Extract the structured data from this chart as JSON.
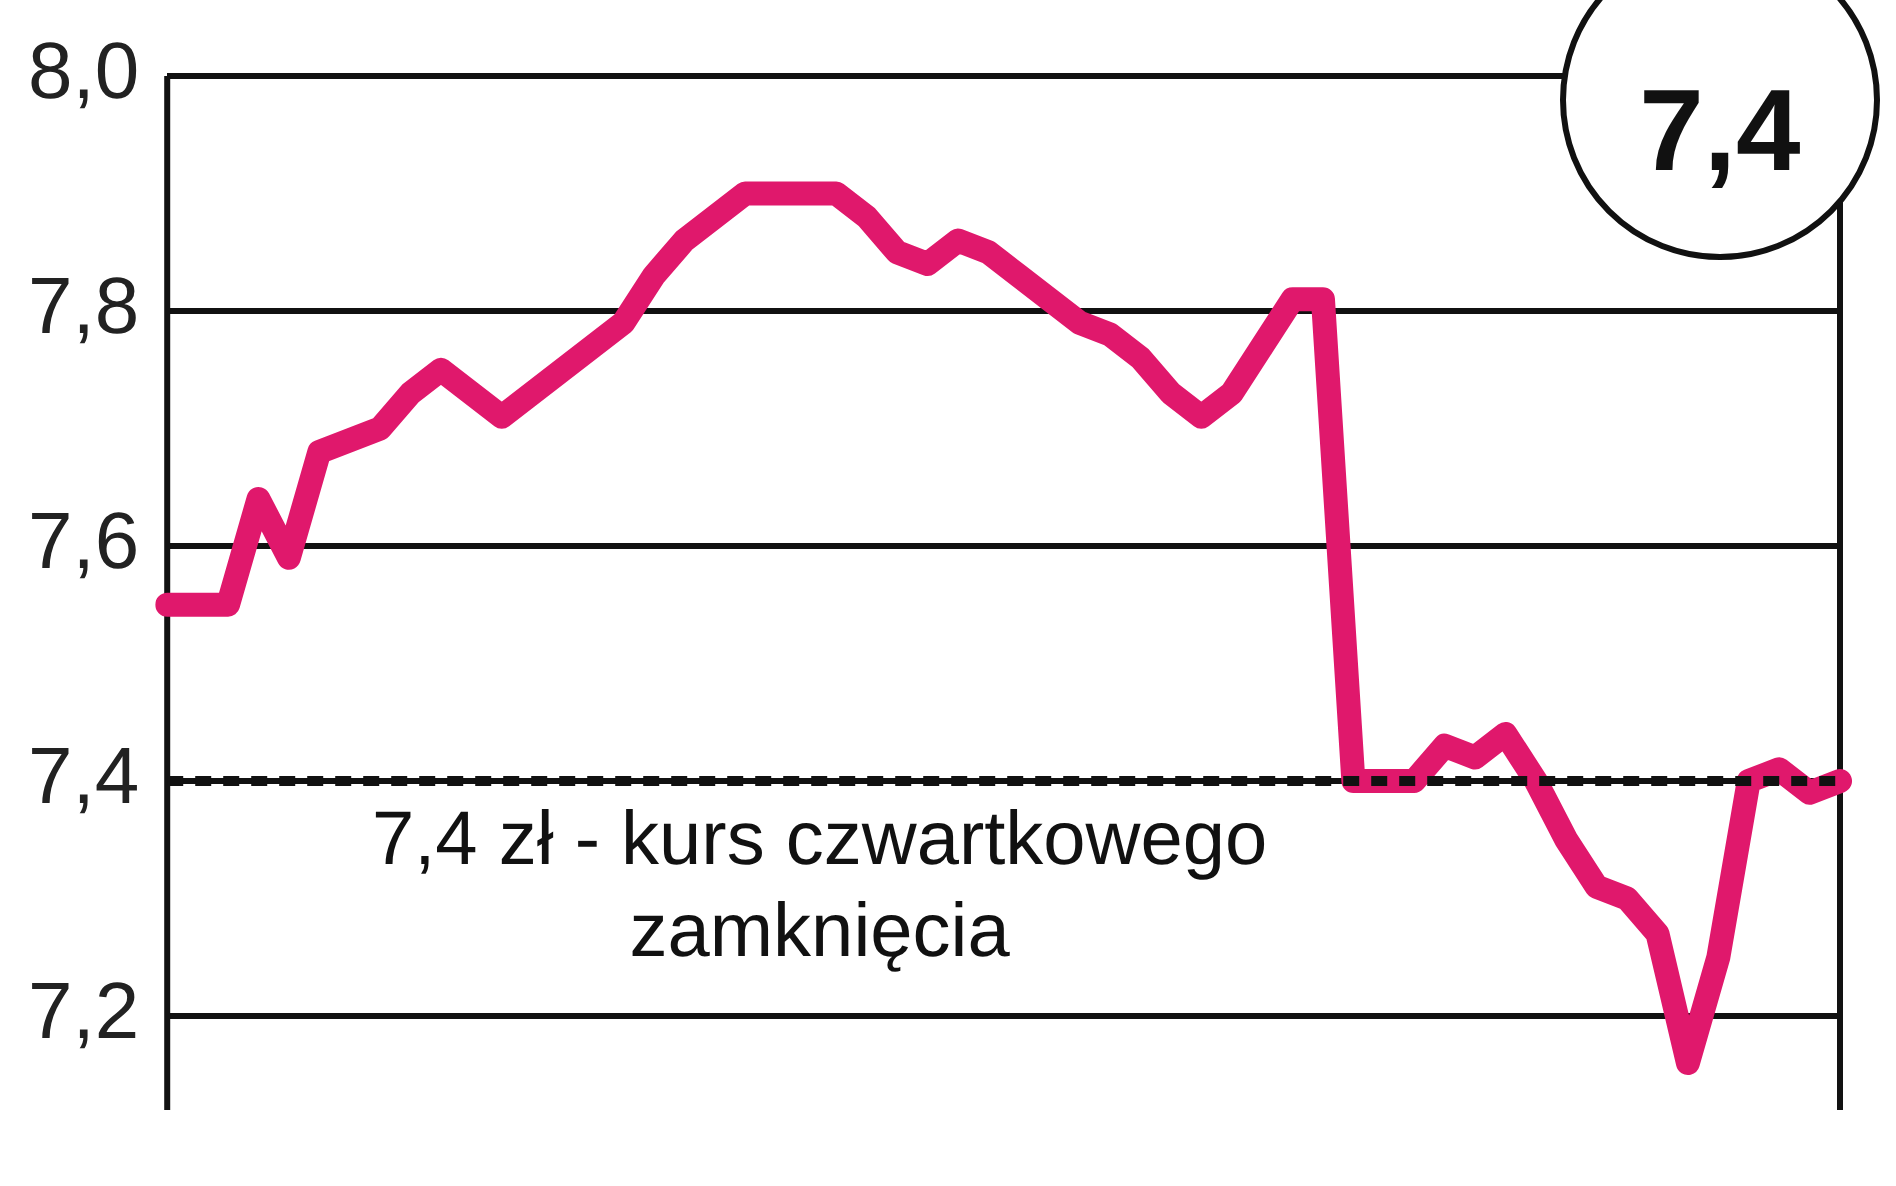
{
  "chart_data": {
    "type": "line",
    "categories": [
      null,
      null,
      null,
      null,
      null,
      null,
      null,
      null,
      null,
      null,
      null,
      null,
      null,
      null,
      null,
      null,
      null,
      null,
      null,
      null,
      null,
      null,
      null,
      null,
      null,
      null,
      null,
      null,
      null,
      null,
      null,
      null,
      null,
      null,
      null,
      null,
      null,
      null,
      null,
      null,
      null,
      null,
      null,
      null,
      null,
      null,
      null,
      null,
      null,
      null,
      null,
      null,
      null,
      null,
      null,
      null
    ],
    "series": [
      {
        "color": "#e0186c",
        "values": [
          7.55,
          7.55,
          7.55,
          7.64,
          7.59,
          7.68,
          7.69,
          7.7,
          7.73,
          7.75,
          7.73,
          7.71,
          7.73,
          7.75,
          7.77,
          7.79,
          7.83,
          7.86,
          7.88,
          7.9,
          7.9,
          7.9,
          7.9,
          7.88,
          7.85,
          7.84,
          7.86,
          7.85,
          7.83,
          7.81,
          7.79,
          7.78,
          7.76,
          7.73,
          7.71,
          7.73,
          7.77,
          7.81,
          7.81,
          7.4,
          7.4,
          7.4,
          7.43,
          7.42,
          7.44,
          7.4,
          7.35,
          7.31,
          7.3,
          7.27,
          7.16,
          7.25,
          7.4,
          7.41,
          7.39,
          7.4
        ]
      }
    ],
    "ylim": [
      7.12,
      8.0
    ],
    "yticks": [
      {
        "value": 7.2,
        "label": "7,2"
      },
      {
        "value": 7.4,
        "label": "7,4"
      },
      {
        "value": 7.6,
        "label": "7,6"
      },
      {
        "value": 7.8,
        "label": "7,8"
      },
      {
        "value": 8.0,
        "label": "8,0"
      }
    ],
    "tick_labels": "y",
    "grid": "y",
    "legend": false,
    "marker": "none",
    "line_style": "solid",
    "ref_lines": [
      {
        "axis": "y",
        "value": 7.4,
        "label": "7,4 zł - kurs czwartkowego zamknięcia",
        "color": "#111111",
        "line_style": "dashed"
      }
    ],
    "annotations": [
      "7,4"
    ]
  }
}
